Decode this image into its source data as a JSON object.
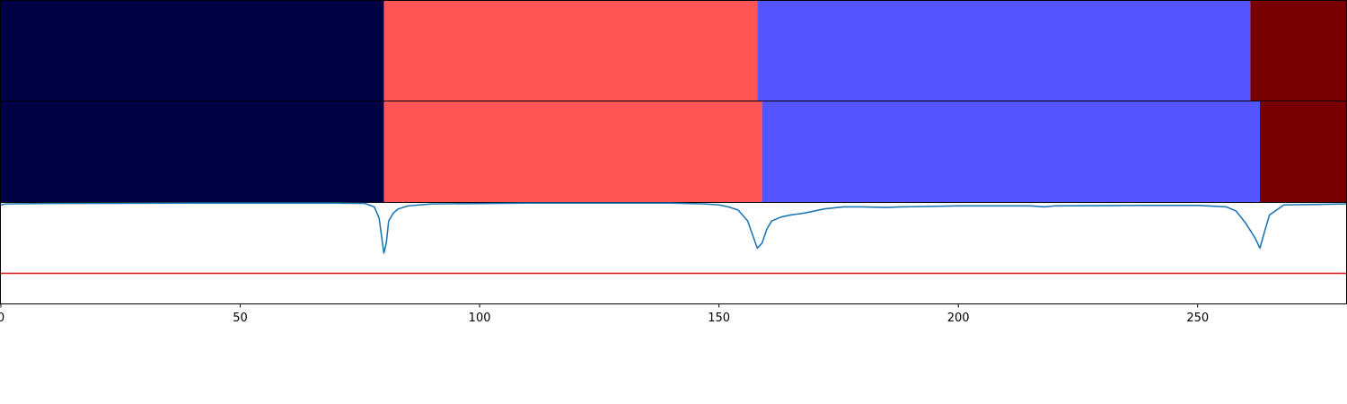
{
  "chart_data": [
    {
      "type": "heatmap",
      "name": "segmentation-row-1",
      "segments": [
        {
          "start": 0,
          "end": 80,
          "color": "#000044"
        },
        {
          "start": 80,
          "end": 158,
          "color": "#ff5555"
        },
        {
          "start": 158,
          "end": 261,
          "color": "#5555ff"
        },
        {
          "start": 261,
          "end": 281,
          "color": "#770000"
        }
      ]
    },
    {
      "type": "heatmap",
      "name": "segmentation-row-2",
      "segments": [
        {
          "start": 0,
          "end": 80,
          "color": "#000044"
        },
        {
          "start": 80,
          "end": 159,
          "color": "#ff5555"
        },
        {
          "start": 159,
          "end": 263,
          "color": "#5555ff"
        },
        {
          "start": 263,
          "end": 281,
          "color": "#770000"
        }
      ]
    },
    {
      "type": "line",
      "name": "confidence-trace",
      "xlim": [
        0,
        281
      ],
      "ylim": [
        0,
        1
      ],
      "x_ticks": [
        0,
        50,
        100,
        150,
        200,
        250
      ],
      "threshold": 0.3,
      "series": [
        {
          "color": "#1f77b4",
          "points": [
            [
              0,
              0.98
            ],
            [
              1,
              0.99
            ],
            [
              10,
              0.995
            ],
            [
              40,
              0.998
            ],
            [
              70,
              0.998
            ],
            [
              76,
              0.995
            ],
            [
              78,
              0.96
            ],
            [
              79,
              0.85
            ],
            [
              80,
              0.5
            ],
            [
              80.5,
              0.6
            ],
            [
              81,
              0.82
            ],
            [
              82,
              0.9
            ],
            [
              83,
              0.94
            ],
            [
              85,
              0.97
            ],
            [
              90,
              0.99
            ],
            [
              110,
              0.998
            ],
            [
              140,
              0.998
            ],
            [
              147,
              0.99
            ],
            [
              150,
              0.98
            ],
            [
              152,
              0.96
            ],
            [
              154,
              0.93
            ],
            [
              156,
              0.82
            ],
            [
              158,
              0.55
            ],
            [
              159,
              0.6
            ],
            [
              160,
              0.74
            ],
            [
              161,
              0.82
            ],
            [
              163,
              0.86
            ],
            [
              165,
              0.88
            ],
            [
              168,
              0.9
            ],
            [
              172,
              0.94
            ],
            [
              176,
              0.96
            ],
            [
              180,
              0.96
            ],
            [
              185,
              0.955
            ],
            [
              188,
              0.96
            ],
            [
              200,
              0.97
            ],
            [
              215,
              0.97
            ],
            [
              218,
              0.96
            ],
            [
              220,
              0.97
            ],
            [
              240,
              0.975
            ],
            [
              250,
              0.975
            ],
            [
              252,
              0.97
            ],
            [
              256,
              0.96
            ],
            [
              258,
              0.92
            ],
            [
              260,
              0.8
            ],
            [
              262,
              0.65
            ],
            [
              263,
              0.55
            ],
            [
              264,
              0.72
            ],
            [
              265,
              0.88
            ],
            [
              268,
              0.98
            ],
            [
              275,
              0.985
            ],
            [
              281,
              0.99
            ]
          ]
        },
        {
          "color": "#d62728",
          "points": [
            [
              0,
              0.3
            ],
            [
              281,
              0.3
            ]
          ]
        }
      ]
    }
  ]
}
